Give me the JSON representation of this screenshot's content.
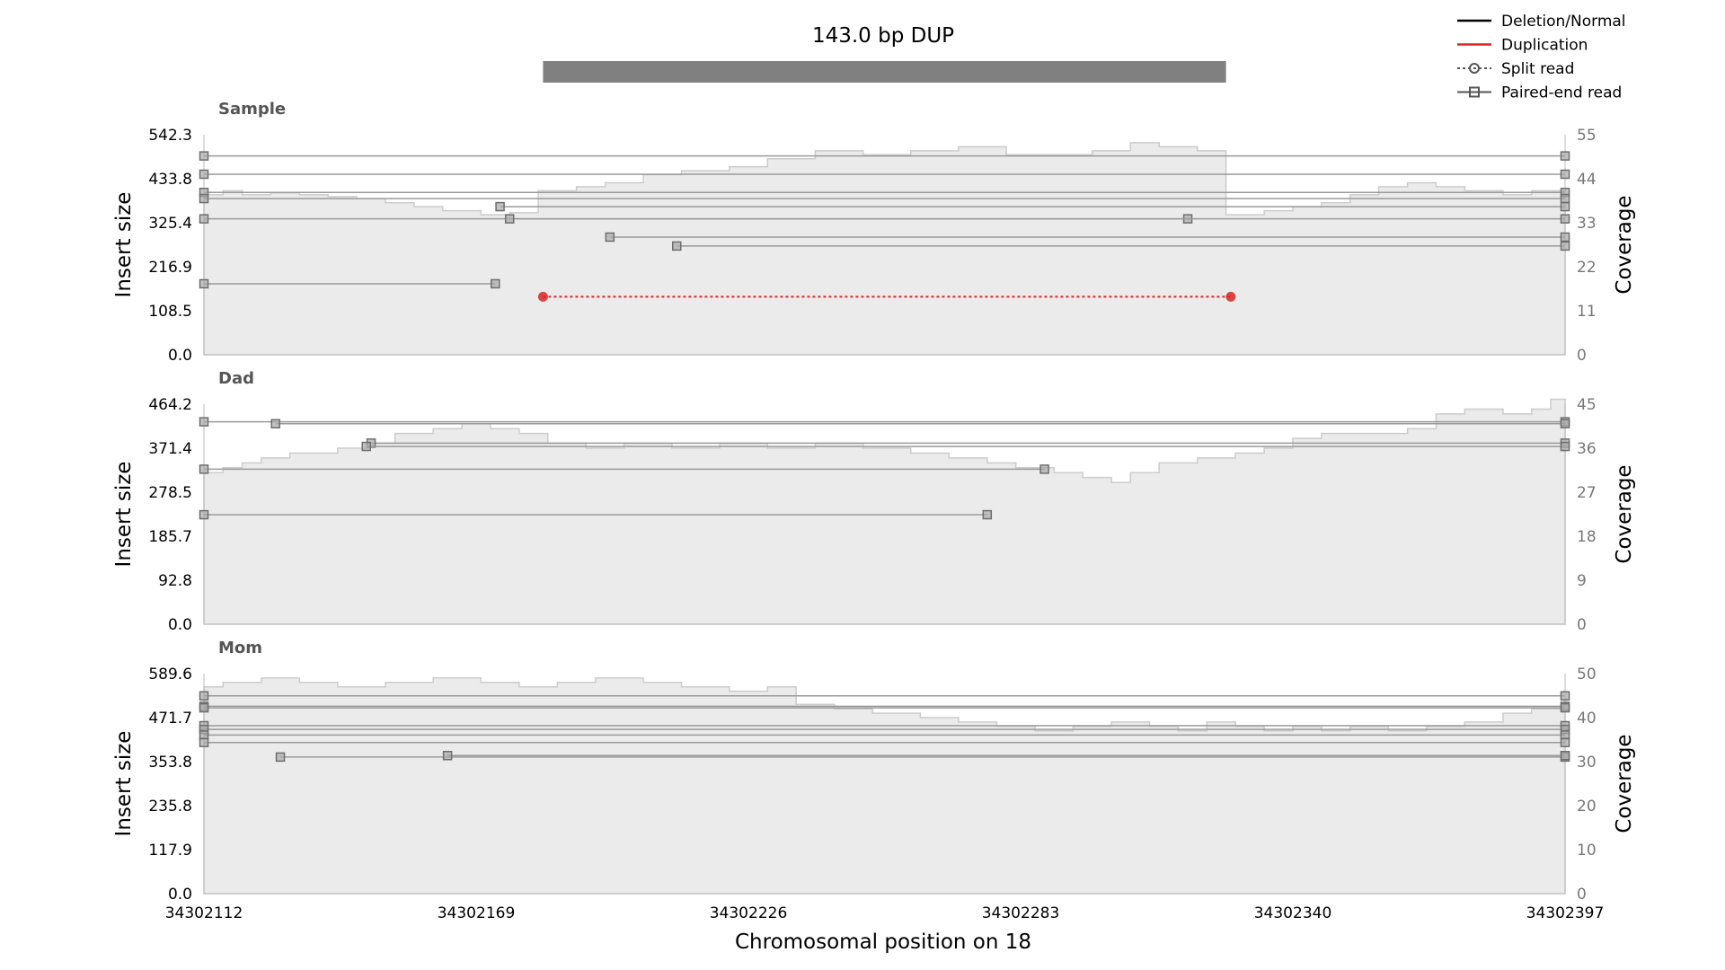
{
  "chart_data": {
    "type": "line",
    "title": "143.0 bp DUP",
    "xlabel": "Chromosomal position on 18",
    "x_ticks": [
      "34302112",
      "34302169",
      "34302226",
      "34302283",
      "34302340",
      "34302397"
    ],
    "xlim": [
      34302112,
      34302397
    ],
    "variant": {
      "type": "DUP",
      "start": 34302183,
      "end": 34302326
    },
    "legend": {
      "placement": "top-right",
      "entries": [
        {
          "label": "Deletion/Normal",
          "style": "line",
          "color": "#000000"
        },
        {
          "label": "Duplication",
          "style": "line",
          "color": "#d62728"
        },
        {
          "label": "Split read",
          "style": "dotted-circle",
          "color": "#555555"
        },
        {
          "label": "Paired-end read",
          "style": "line-square",
          "color": "#555555"
        }
      ]
    },
    "colors": {
      "coverage_fill": "#ebebeb",
      "coverage_line": "#cccccc",
      "pair_line": "#9a9a9a",
      "pair_marker": "#6e6e6e",
      "split_dup": "#d62728",
      "variant_bar": "#808080"
    },
    "tracks": [
      {
        "label": "Sample",
        "ylabel": "Insert size",
        "ylabel2": "Coverage",
        "yticks": [
          "0.0",
          "108.5",
          "216.9",
          "325.4",
          "433.8",
          "542.3"
        ],
        "ylim": [
          0,
          542.3
        ],
        "cov_ticks": [
          "0",
          "11",
          "22",
          "33",
          "44",
          "55"
        ],
        "cov_lim": [
          0,
          55
        ],
        "coverage": [
          [
            34302112,
            40
          ],
          [
            34302116,
            41
          ],
          [
            34302120,
            40
          ],
          [
            34302126,
            40.5
          ],
          [
            34302132,
            40
          ],
          [
            34302138,
            39.5
          ],
          [
            34302144,
            39
          ],
          [
            34302150,
            38
          ],
          [
            34302156,
            37
          ],
          [
            34302162,
            36
          ],
          [
            34302170,
            35
          ],
          [
            34302176,
            35.5
          ],
          [
            34302182,
            41
          ],
          [
            34302190,
            42
          ],
          [
            34302196,
            43
          ],
          [
            34302204,
            45
          ],
          [
            34302212,
            46
          ],
          [
            34302222,
            47
          ],
          [
            34302230,
            49
          ],
          [
            34302240,
            51
          ],
          [
            34302250,
            50
          ],
          [
            34302260,
            51
          ],
          [
            34302270,
            52
          ],
          [
            34302280,
            50
          ],
          [
            34302290,
            50
          ],
          [
            34302298,
            51
          ],
          [
            34302306,
            53
          ],
          [
            34302312,
            52
          ],
          [
            34302320,
            51
          ],
          [
            34302326,
            35
          ],
          [
            34302334,
            36
          ],
          [
            34302340,
            37
          ],
          [
            34302346,
            38
          ],
          [
            34302352,
            40
          ],
          [
            34302358,
            42
          ],
          [
            34302364,
            43
          ],
          [
            34302370,
            42
          ],
          [
            34302376,
            41
          ],
          [
            34302384,
            40
          ],
          [
            34302390,
            41
          ],
          [
            34302397,
            41
          ]
        ],
        "pairs": [
          {
            "x1": 34302112,
            "x2": 34302397,
            "y": 490
          },
          {
            "x1": 34302112,
            "x2": 34302397,
            "y": 445
          },
          {
            "x1": 34302112,
            "x2": 34302397,
            "y": 400
          },
          {
            "x1": 34302112,
            "x2": 34302397,
            "y": 385
          },
          {
            "x1": 34302174,
            "x2": 34302397,
            "y": 365
          },
          {
            "x1": 34302112,
            "x2": 34302318,
            "y": 335
          },
          {
            "x1": 34302176,
            "x2": 34302397,
            "y": 335
          },
          {
            "x1": 34302197,
            "x2": 34302397,
            "y": 290
          },
          {
            "x1": 34302211,
            "x2": 34302397,
            "y": 268
          },
          {
            "x1": 34302112,
            "x2": 34302173,
            "y": 175
          }
        ],
        "splits": [
          {
            "x1": 34302183,
            "x2": 34302327,
            "y": 143,
            "kind": "DUP"
          }
        ]
      },
      {
        "label": "Dad",
        "ylabel": "Insert size",
        "ylabel2": "Coverage",
        "yticks": [
          "0.0",
          "92.8",
          "185.7",
          "278.5",
          "371.4",
          "464.2"
        ],
        "ylim": [
          0,
          464.2
        ],
        "cov_ticks": [
          "0",
          "9",
          "18",
          "27",
          "36",
          "45"
        ],
        "cov_lim": [
          0,
          45
        ],
        "coverage": [
          [
            34302112,
            31
          ],
          [
            34302116,
            32
          ],
          [
            34302120,
            33
          ],
          [
            34302124,
            34
          ],
          [
            34302130,
            35
          ],
          [
            34302140,
            36
          ],
          [
            34302146,
            37
          ],
          [
            34302152,
            39
          ],
          [
            34302160,
            40
          ],
          [
            34302166,
            41
          ],
          [
            34302172,
            40
          ],
          [
            34302178,
            39
          ],
          [
            34302184,
            37
          ],
          [
            34302192,
            36
          ],
          [
            34302200,
            37
          ],
          [
            34302210,
            36
          ],
          [
            34302220,
            37
          ],
          [
            34302230,
            36
          ],
          [
            34302240,
            37
          ],
          [
            34302250,
            36
          ],
          [
            34302260,
            35
          ],
          [
            34302268,
            34
          ],
          [
            34302276,
            33
          ],
          [
            34302282,
            32
          ],
          [
            34302290,
            31
          ],
          [
            34302296,
            30
          ],
          [
            34302302,
            29
          ],
          [
            34302306,
            31
          ],
          [
            34302312,
            33
          ],
          [
            34302320,
            34
          ],
          [
            34302328,
            35
          ],
          [
            34302334,
            36
          ],
          [
            34302340,
            38
          ],
          [
            34302346,
            39
          ],
          [
            34302352,
            39
          ],
          [
            34302358,
            39
          ],
          [
            34302364,
            40
          ],
          [
            34302370,
            43
          ],
          [
            34302376,
            44
          ],
          [
            34302384,
            43
          ],
          [
            34302390,
            44
          ],
          [
            34302394,
            46
          ],
          [
            34302397,
            46
          ]
        ],
        "pairs": [
          {
            "x1": 34302112,
            "x2": 34302397,
            "y": 427
          },
          {
            "x1": 34302127,
            "x2": 34302397,
            "y": 423
          },
          {
            "x1": 34302147,
            "x2": 34302397,
            "y": 382
          },
          {
            "x1": 34302146,
            "x2": 34302397,
            "y": 375
          },
          {
            "x1": 34302112,
            "x2": 34302288,
            "y": 327
          },
          {
            "x1": 34302112,
            "x2": 34302276,
            "y": 231
          }
        ],
        "splits": []
      },
      {
        "label": "Mom",
        "ylabel": "Insert size",
        "ylabel2": "Coverage",
        "yticks": [
          "0.0",
          "117.9",
          "235.8",
          "353.8",
          "471.7",
          "589.6"
        ],
        "ylim": [
          0,
          589.6
        ],
        "cov_ticks": [
          "0",
          "10",
          "20",
          "30",
          "40",
          "50"
        ],
        "cov_lim": [
          0,
          50
        ],
        "coverage": [
          [
            34302112,
            47
          ],
          [
            34302116,
            48
          ],
          [
            34302124,
            49
          ],
          [
            34302132,
            48
          ],
          [
            34302140,
            47
          ],
          [
            34302150,
            48
          ],
          [
            34302160,
            49
          ],
          [
            34302170,
            48
          ],
          [
            34302178,
            47
          ],
          [
            34302186,
            48
          ],
          [
            34302194,
            49
          ],
          [
            34302204,
            48
          ],
          [
            34302212,
            47
          ],
          [
            34302222,
            46
          ],
          [
            34302230,
            47
          ],
          [
            34302236,
            43
          ],
          [
            34302244,
            42
          ],
          [
            34302252,
            41
          ],
          [
            34302262,
            40
          ],
          [
            34302270,
            39
          ],
          [
            34302278,
            38
          ],
          [
            34302286,
            37
          ],
          [
            34302294,
            38
          ],
          [
            34302302,
            39
          ],
          [
            34302310,
            38
          ],
          [
            34302316,
            37
          ],
          [
            34302322,
            39
          ],
          [
            34302328,
            38
          ],
          [
            34302334,
            37
          ],
          [
            34302340,
            38
          ],
          [
            34302346,
            37
          ],
          [
            34302352,
            38
          ],
          [
            34302360,
            37
          ],
          [
            34302368,
            38
          ],
          [
            34302376,
            39
          ],
          [
            34302384,
            41
          ],
          [
            34302390,
            42
          ],
          [
            34302397,
            41
          ]
        ],
        "pairs": [
          {
            "x1": 34302112,
            "x2": 34302397,
            "y": 530
          },
          {
            "x1": 34302112,
            "x2": 34302397,
            "y": 502
          },
          {
            "x1": 34302112,
            "x2": 34302397,
            "y": 498
          },
          {
            "x1": 34302112,
            "x2": 34302397,
            "y": 450
          },
          {
            "x1": 34302112,
            "x2": 34302397,
            "y": 440
          },
          {
            "x1": 34302112,
            "x2": 34302397,
            "y": 425
          },
          {
            "x1": 34302112,
            "x2": 34302397,
            "y": 405
          },
          {
            "x1": 34302128,
            "x2": 34302397,
            "y": 366
          },
          {
            "x1": 34302163,
            "x2": 34302397,
            "y": 370
          }
        ],
        "splits": []
      }
    ]
  }
}
